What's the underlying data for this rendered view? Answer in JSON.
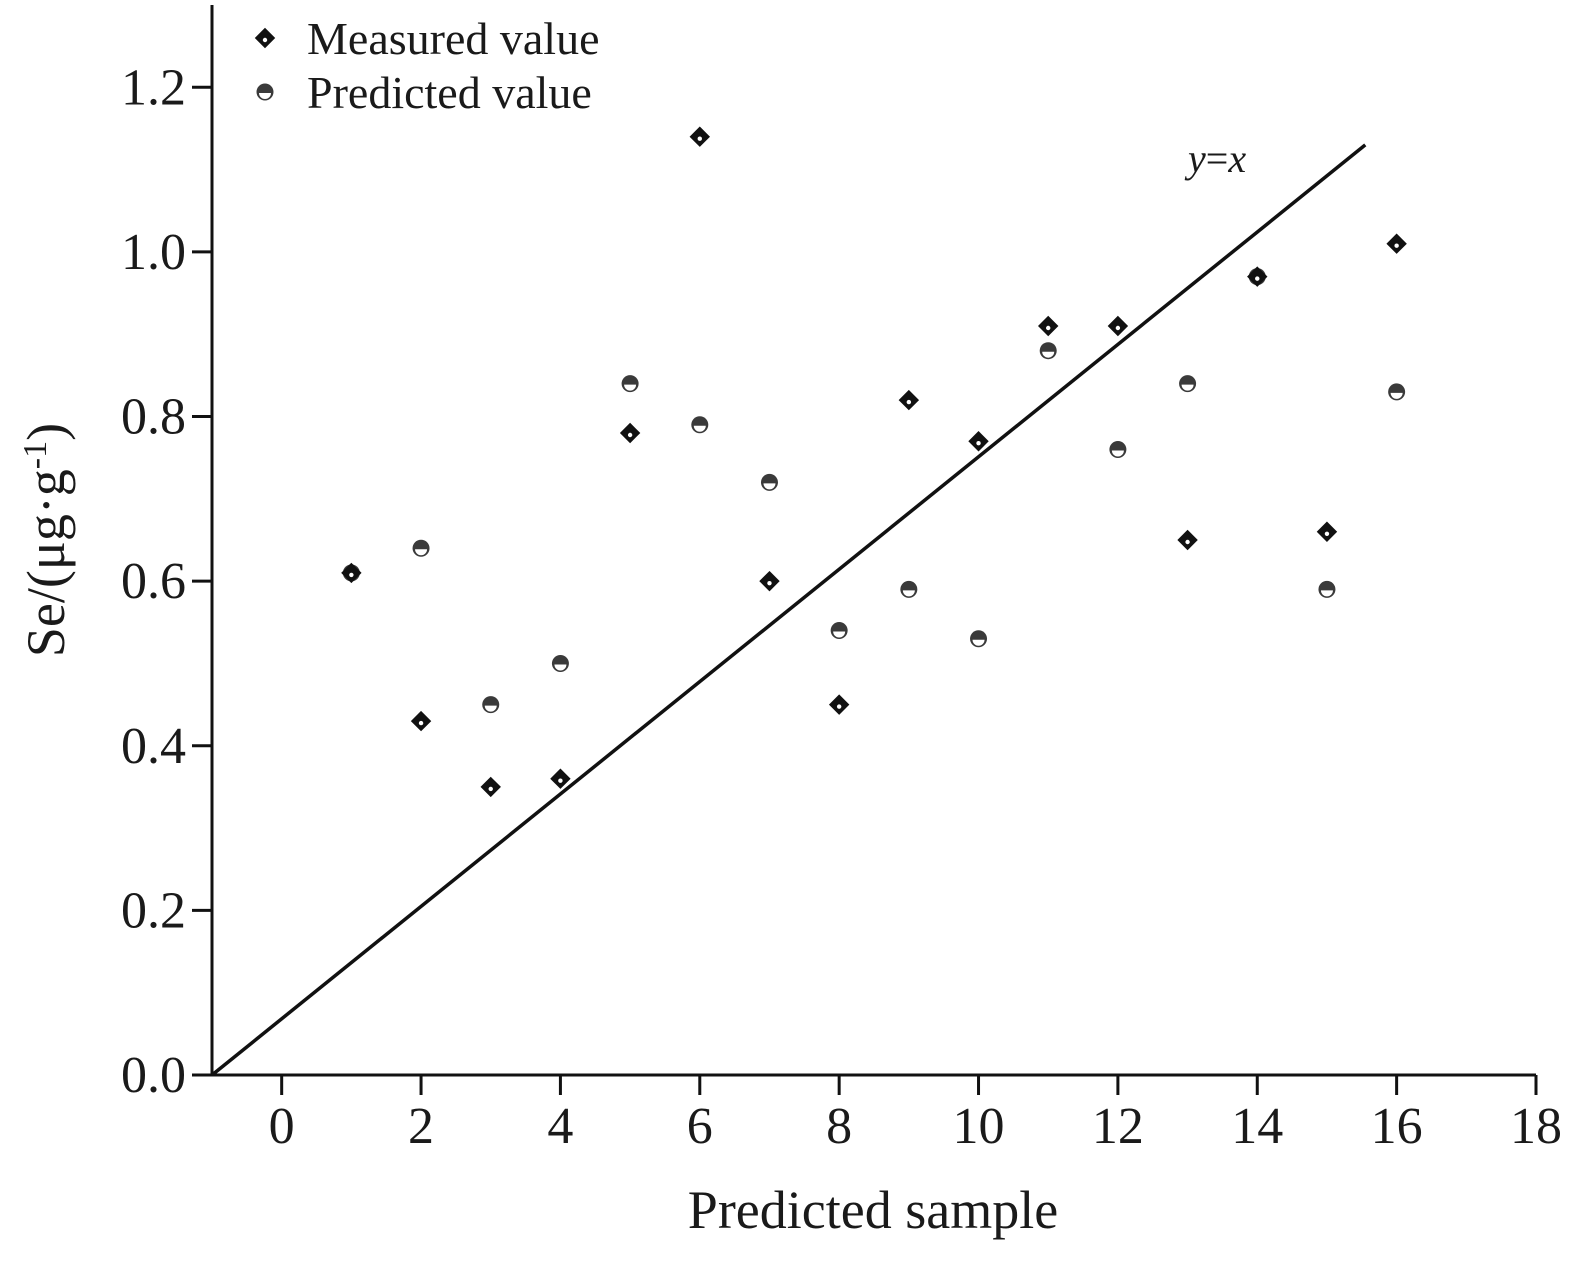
{
  "chart_data": {
    "type": "scatter",
    "title": "",
    "xlabel": "Predicted sample",
    "ylabel": "Se/(μg·g-1)",
    "ylabel_parts": {
      "base": "Se/(μg·g",
      "sup": "-1",
      "tail": ")"
    },
    "xlim": [
      -1,
      18
    ],
    "ylim": [
      0,
      1.3
    ],
    "x_ticks": [
      0,
      2,
      4,
      6,
      8,
      10,
      12,
      14,
      16,
      18
    ],
    "x_tick_labels": [
      "0",
      "2",
      "4",
      "6",
      "8",
      "10",
      "12",
      "14",
      "16",
      "18"
    ],
    "y_ticks": [
      0.0,
      0.2,
      0.4,
      0.6,
      0.8,
      1.0,
      1.2
    ],
    "y_tick_labels": [
      "0.0",
      "0.2",
      "0.4",
      "0.6",
      "0.8",
      "1.0",
      "1.2"
    ],
    "grid": false,
    "legend_position": "top-left",
    "series": [
      {
        "name": "Measured value",
        "marker": "diamond",
        "color": "#111111",
        "x": [
          1,
          2,
          3,
          4,
          5,
          6,
          7,
          8,
          9,
          10,
          11,
          12,
          13,
          14,
          15,
          16
        ],
        "y": [
          0.61,
          0.43,
          0.35,
          0.36,
          0.78,
          1.14,
          0.6,
          0.45,
          0.82,
          0.77,
          0.91,
          0.91,
          0.65,
          0.97,
          0.66,
          1.01
        ]
      },
      {
        "name": "Predicted value",
        "marker": "circle",
        "color": "#3a3a3a",
        "x": [
          1,
          2,
          3,
          4,
          5,
          6,
          7,
          8,
          9,
          10,
          11,
          12,
          13,
          14,
          15,
          16
        ],
        "y": [
          0.61,
          0.64,
          0.45,
          0.5,
          0.84,
          0.79,
          0.72,
          0.54,
          0.59,
          0.53,
          0.88,
          0.76,
          0.84,
          0.97,
          0.59,
          0.83
        ]
      }
    ],
    "reference_line": {
      "label_y": "y",
      "label_eq": "=",
      "label_x": "x",
      "from": [
        -1,
        0
      ],
      "to": [
        15.55,
        1.13
      ]
    }
  }
}
